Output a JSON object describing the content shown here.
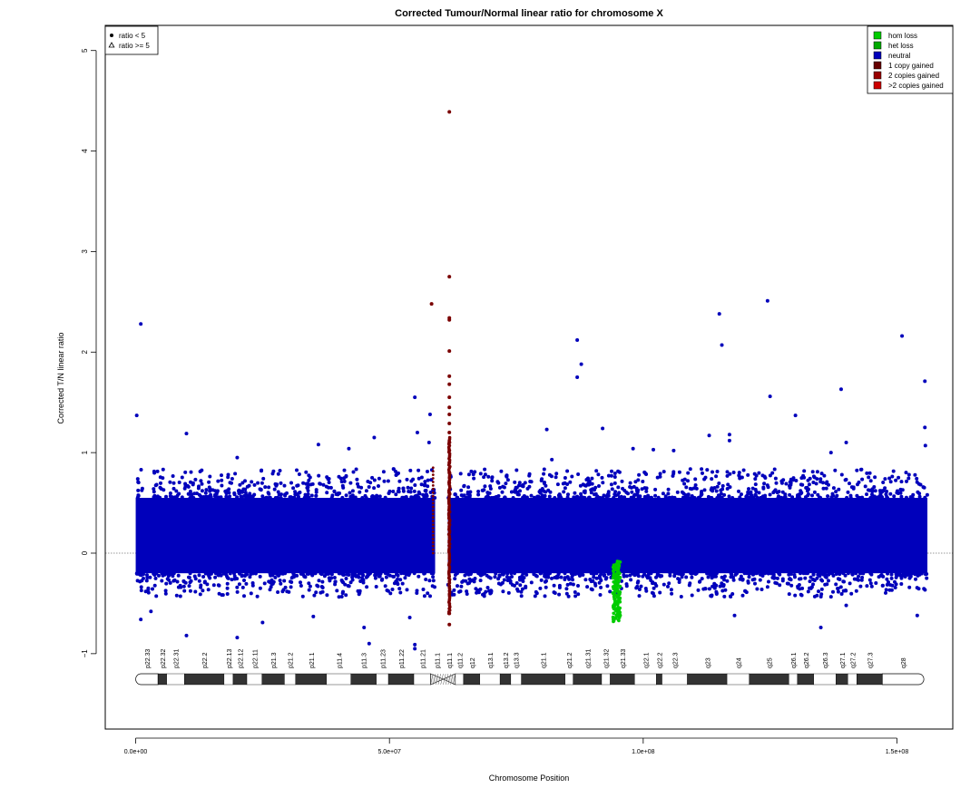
{
  "chart_data": {
    "type": "scatter",
    "title": "Corrected Tumour/Normal linear ratio for chromosome  X",
    "xlabel": "Chromosome Position",
    "ylabel": "Corrected T/N linear ratio",
    "xlim": [
      -6000000,
      161000000
    ],
    "ylim": [
      -1.75,
      5.25
    ],
    "x_ticks": [
      0,
      50000000,
      100000000,
      150000000
    ],
    "x_tick_labels": [
      "0.0e+00",
      "5.0e+07",
      "1.0e+08",
      "1.5e+08"
    ],
    "y_ticks": [
      -1,
      0,
      1,
      2,
      3,
      4,
      5
    ],
    "y_tick_labels": [
      "−1",
      "0",
      "1",
      "2",
      "3",
      "4",
      "5"
    ],
    "reference_line_y": 0,
    "shape_legend": {
      "position": "top-left",
      "entries": [
        {
          "label": "ratio < 5",
          "shape": "circle"
        },
        {
          "label": "ratio >= 5",
          "shape": "triangle"
        }
      ]
    },
    "color_legend": {
      "position": "top-right",
      "entries": [
        {
          "label": "hom loss",
          "color": "#00cc00"
        },
        {
          "label": "het loss",
          "color": "#00aa00"
        },
        {
          "label": "neutral",
          "color": "#0000bb"
        },
        {
          "label": "1 copy gained",
          "color": "#660000"
        },
        {
          "label": "2 copies gained",
          "color": "#990000"
        },
        {
          "label": ">2 copies gained",
          "color": "#cc0000"
        }
      ]
    },
    "series": [
      {
        "name": "neutral",
        "color": "#0000bb",
        "bands": [
          {
            "x": [
              0,
              59000000
            ],
            "y_core": [
              -0.2,
              0.55
            ]
          },
          {
            "x": [
              61500000,
              156000000
            ],
            "y_core": [
              -0.2,
              0.55
            ]
          }
        ],
        "outliers": [
          [
            1000000,
            2.28
          ],
          [
            200000,
            1.37
          ],
          [
            10000000,
            1.19
          ],
          [
            20000000,
            0.95
          ],
          [
            36000000,
            1.08
          ],
          [
            42000000,
            1.04
          ],
          [
            47000000,
            1.15
          ],
          [
            55000000,
            1.55
          ],
          [
            58000000,
            1.38
          ],
          [
            57800000,
            1.1
          ],
          [
            55500000,
            1.2
          ],
          [
            87000000,
            2.12
          ],
          [
            87000000,
            1.75
          ],
          [
            87800000,
            1.88
          ],
          [
            81000000,
            1.23
          ],
          [
            92000000,
            1.24
          ],
          [
            115000000,
            2.38
          ],
          [
            115500000,
            2.07
          ],
          [
            124500000,
            2.51
          ],
          [
            125000000,
            1.56
          ],
          [
            130000000,
            1.37
          ],
          [
            139000000,
            1.63
          ],
          [
            151000000,
            2.16
          ],
          [
            155500000,
            1.71
          ],
          [
            155500000,
            1.25
          ],
          [
            155600000,
            1.07
          ],
          [
            117000000,
            1.18
          ],
          [
            117000000,
            1.12
          ],
          [
            113000000,
            1.17
          ],
          [
            3000000,
            -0.58
          ],
          [
            10000000,
            -0.82
          ],
          [
            35000000,
            -0.63
          ],
          [
            45000000,
            -0.74
          ],
          [
            46000000,
            -0.9
          ],
          [
            55000000,
            -0.95
          ],
          [
            55000000,
            -0.91
          ],
          [
            54000000,
            -0.64
          ],
          [
            1000000,
            -0.66
          ],
          [
            140000000,
            -0.52
          ],
          [
            135000000,
            -0.74
          ],
          [
            118000000,
            -0.62
          ],
          [
            154000000,
            -0.62
          ],
          [
            20000000,
            -0.84
          ],
          [
            25000000,
            -0.69
          ],
          [
            140000000,
            1.1
          ],
          [
            137000000,
            1.0
          ],
          [
            102000000,
            1.03
          ],
          [
            98000000,
            1.04
          ],
          [
            106000000,
            1.02
          ],
          [
            82000000,
            0.93
          ]
        ]
      },
      {
        "name": "1 copy gained",
        "color": "#7a0000",
        "points": [
          [
            58300000,
            2.48
          ],
          [
            61800000,
            4.39
          ],
          [
            61800000,
            2.75
          ],
          [
            61800000,
            2.34
          ],
          [
            61800000,
            2.32
          ],
          [
            61800000,
            2.01
          ],
          [
            61800000,
            1.76
          ],
          [
            61800000,
            1.68
          ],
          [
            61800000,
            1.55
          ],
          [
            61800000,
            1.45
          ],
          [
            61800000,
            1.38
          ],
          [
            61800000,
            1.29
          ],
          [
            61800000,
            1.2
          ],
          [
            61800000,
            1.1
          ],
          [
            61800000,
            1.02
          ],
          [
            61800000,
            0.9
          ],
          [
            61800000,
            0.8
          ],
          [
            61800000,
            0.7
          ],
          [
            61800000,
            0.6
          ],
          [
            61800000,
            -0.6
          ],
          [
            61800000,
            -0.71
          ]
        ]
      },
      {
        "name": "het loss",
        "color": "#00cc00",
        "band": {
          "x": [
            94000000,
            95500000
          ],
          "y": [
            -0.68,
            -0.08
          ]
        }
      }
    ],
    "ideogram": {
      "bands": [
        {
          "name": "p22.33",
          "start": 0,
          "end": 4400000,
          "stain": "gneg"
        },
        {
          "name": "p22.32",
          "start": 4400000,
          "end": 6100000,
          "stain": "gpos"
        },
        {
          "name": "p22.31",
          "start": 6100000,
          "end": 9600000,
          "stain": "gneg"
        },
        {
          "name": "p22.2",
          "start": 9600000,
          "end": 17400000,
          "stain": "gpos"
        },
        {
          "name": "p22.13",
          "start": 17400000,
          "end": 19200000,
          "stain": "gneg"
        },
        {
          "name": "p22.12",
          "start": 19200000,
          "end": 21900000,
          "stain": "gpos"
        },
        {
          "name": "p22.11",
          "start": 21900000,
          "end": 24900000,
          "stain": "gneg"
        },
        {
          "name": "p21.3",
          "start": 24900000,
          "end": 29300000,
          "stain": "gpos"
        },
        {
          "name": "p21.2",
          "start": 29300000,
          "end": 31500000,
          "stain": "gneg"
        },
        {
          "name": "p21.1",
          "start": 31500000,
          "end": 37600000,
          "stain": "gpos"
        },
        {
          "name": "p11.4",
          "start": 37600000,
          "end": 42400000,
          "stain": "gneg"
        },
        {
          "name": "p11.3",
          "start": 42400000,
          "end": 47400000,
          "stain": "gpos"
        },
        {
          "name": "p11.23",
          "start": 47400000,
          "end": 49800000,
          "stain": "gneg"
        },
        {
          "name": "p11.22",
          "start": 49800000,
          "end": 54800000,
          "stain": "gpos"
        },
        {
          "name": "p11.21",
          "start": 54800000,
          "end": 58100000,
          "stain": "gneg"
        },
        {
          "name": "p11.1",
          "start": 58100000,
          "end": 60600000,
          "stain": "acen"
        },
        {
          "name": "q11.1",
          "start": 60600000,
          "end": 63000000,
          "stain": "acen"
        },
        {
          "name": "q11.2",
          "start": 63000000,
          "end": 64600000,
          "stain": "gneg"
        },
        {
          "name": "q12",
          "start": 64600000,
          "end": 67800000,
          "stain": "gpos"
        },
        {
          "name": "q13.1",
          "start": 67800000,
          "end": 71800000,
          "stain": "gneg"
        },
        {
          "name": "q13.2",
          "start": 71800000,
          "end": 73900000,
          "stain": "gpos"
        },
        {
          "name": "q13.3",
          "start": 73900000,
          "end": 76000000,
          "stain": "gneg"
        },
        {
          "name": "q21.1",
          "start": 76000000,
          "end": 84600000,
          "stain": "gpos"
        },
        {
          "name": "q21.2",
          "start": 84600000,
          "end": 86200000,
          "stain": "gneg"
        },
        {
          "name": "q21.31",
          "start": 86200000,
          "end": 91800000,
          "stain": "gpos"
        },
        {
          "name": "q21.32",
          "start": 91800000,
          "end": 93500000,
          "stain": "gneg"
        },
        {
          "name": "q21.33",
          "start": 93500000,
          "end": 98300000,
          "stain": "gpos"
        },
        {
          "name": "q22.1",
          "start": 98300000,
          "end": 102600000,
          "stain": "gneg"
        },
        {
          "name": "q22.2",
          "start": 102600000,
          "end": 103700000,
          "stain": "gpos"
        },
        {
          "name": "q22.3",
          "start": 103700000,
          "end": 108700000,
          "stain": "gneg"
        },
        {
          "name": "q23",
          "start": 108700000,
          "end": 116500000,
          "stain": "gpos"
        },
        {
          "name": "q24",
          "start": 116500000,
          "end": 120900000,
          "stain": "gneg"
        },
        {
          "name": "q25",
          "start": 120900000,
          "end": 128700000,
          "stain": "gpos"
        },
        {
          "name": "q26.1",
          "start": 128700000,
          "end": 130400000,
          "stain": "gneg"
        },
        {
          "name": "q26.2",
          "start": 130400000,
          "end": 133600000,
          "stain": "gpos"
        },
        {
          "name": "q26.3",
          "start": 133600000,
          "end": 138000000,
          "stain": "gneg"
        },
        {
          "name": "q27.1",
          "start": 138000000,
          "end": 140300000,
          "stain": "gpos"
        },
        {
          "name": "q27.2",
          "start": 140300000,
          "end": 142100000,
          "stain": "gneg"
        },
        {
          "name": "q27.3",
          "start": 142100000,
          "end": 147100000,
          "stain": "gpos"
        },
        {
          "name": "q28",
          "start": 147100000,
          "end": 155300000,
          "stain": "gneg"
        }
      ]
    }
  }
}
